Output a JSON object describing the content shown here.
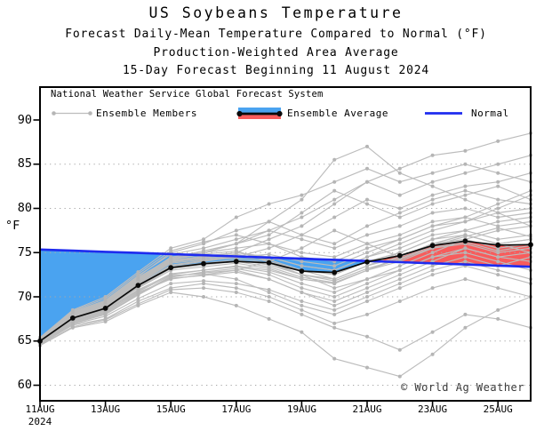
{
  "title": "US Soybeans Temperature",
  "subtitle1": "Forecast Daily-Mean Temperature Compared to Normal (°F)",
  "subtitle2": "Production-Weighted Area Average",
  "subtitle3": "15-Day Forecast Beginning 11 August 2024",
  "watermark": "© World Ag Weather",
  "legend": {
    "header": "National Weather Service Global Forecast System",
    "members_label": "Ensemble Members",
    "average_label": "Ensemble Average",
    "normal_label": "Normal"
  },
  "axes": {
    "y_label": "°F",
    "y_ticks": [
      60,
      65,
      70,
      75,
      80,
      85,
      90
    ],
    "grid_values": [
      60,
      65,
      70,
      75,
      80,
      85
    ],
    "x_ticks": [
      {
        "label": "11AUG",
        "day": 0
      },
      {
        "label": "13AUG",
        "day": 2
      },
      {
        "label": "15AUG",
        "day": 4
      },
      {
        "label": "17AUG",
        "day": 6
      },
      {
        "label": "19AUG",
        "day": 8
      },
      {
        "label": "21AUG",
        "day": 10
      },
      {
        "label": "23AUG",
        "day": 12
      },
      {
        "label": "25AUG",
        "day": 14
      }
    ],
    "x_year": "2024",
    "ylim": [
      58.2,
      93.7
    ]
  },
  "chart_data": {
    "type": "line",
    "title": "US Soybeans Temperature",
    "ylabel": "°F",
    "grid": "dotted horizontal at 5°F steps",
    "legend_position": "top-left-inside",
    "x_dates": [
      "11AUG",
      "12AUG",
      "13AUG",
      "14AUG",
      "15AUG",
      "16AUG",
      "17AUG",
      "18AUG",
      "19AUG",
      "20AUG",
      "21AUG",
      "22AUG",
      "23AUG",
      "24AUG",
      "25AUG",
      "26AUG"
    ],
    "year": "2024",
    "ensemble_average": [
      65.0,
      67.6,
      68.7,
      71.3,
      73.3,
      73.75,
      74.0,
      73.85,
      72.9,
      72.75,
      73.95,
      74.65,
      75.8,
      76.3,
      75.85,
      75.9
    ],
    "normal": [
      75.35,
      75.22,
      75.09,
      74.96,
      74.83,
      74.7,
      74.57,
      74.44,
      74.31,
      74.18,
      74.05,
      73.92,
      73.79,
      73.66,
      73.53,
      73.4
    ],
    "ensemble_members": [
      [
        65.2,
        68.0,
        69.3,
        72.0,
        74.5,
        75.0,
        75.5,
        76.0,
        75.0,
        74.5,
        76.0,
        77.0,
        78.5,
        79.0,
        78.0,
        78.5
      ],
      [
        64.8,
        67.2,
        68.2,
        70.5,
        72.0,
        72.5,
        73.0,
        72.0,
        70.5,
        69.5,
        71.0,
        72.5,
        74.0,
        75.5,
        74.5,
        74.0
      ],
      [
        65.0,
        67.8,
        69.0,
        71.5,
        73.8,
        74.2,
        74.5,
        74.8,
        74.0,
        73.5,
        75.0,
        76.5,
        78.0,
        78.5,
        79.5,
        80.0
      ],
      [
        65.3,
        68.2,
        69.5,
        72.3,
        75.0,
        76.0,
        77.5,
        78.5,
        77.0,
        76.0,
        78.0,
        79.5,
        81.0,
        82.0,
        81.0,
        80.5
      ],
      [
        64.6,
        66.8,
        67.5,
        69.5,
        71.0,
        71.5,
        71.0,
        70.0,
        68.5,
        67.0,
        68.0,
        69.5,
        71.0,
        72.0,
        71.0,
        70.0
      ],
      [
        65.1,
        67.9,
        69.1,
        71.8,
        74.0,
        74.5,
        75.0,
        74.5,
        73.5,
        73.0,
        74.5,
        75.5,
        77.0,
        77.5,
        76.5,
        77.0
      ],
      [
        64.9,
        67.4,
        68.5,
        70.8,
        72.5,
        73.0,
        73.5,
        73.0,
        72.0,
        71.5,
        73.0,
        74.0,
        75.5,
        76.0,
        75.0,
        75.5
      ],
      [
        65.4,
        68.5,
        70.0,
        72.8,
        75.5,
        76.5,
        79.0,
        80.5,
        81.5,
        83.0,
        84.5,
        83.0,
        84.0,
        85.0,
        84.0,
        83.0
      ],
      [
        64.5,
        66.5,
        67.2,
        69.0,
        70.5,
        70.0,
        69.0,
        67.5,
        66.0,
        63.0,
        62.0,
        61.0,
        63.5,
        66.5,
        68.5,
        70.0
      ],
      [
        65.0,
        67.6,
        68.8,
        71.2,
        73.5,
        74.0,
        74.5,
        75.5,
        77.0,
        79.0,
        81.0,
        80.0,
        81.5,
        82.5,
        83.0,
        84.0
      ],
      [
        65.2,
        68.1,
        69.4,
        72.1,
        74.2,
        74.8,
        75.2,
        74.0,
        72.5,
        71.0,
        72.0,
        73.5,
        75.0,
        76.5,
        77.5,
        78.0
      ],
      [
        64.7,
        67.0,
        68.0,
        70.2,
        72.2,
        72.8,
        73.2,
        72.5,
        71.0,
        70.0,
        71.5,
        73.0,
        74.5,
        75.0,
        74.0,
        73.0
      ],
      [
        65.1,
        68.0,
        69.2,
        71.9,
        74.1,
        74.6,
        75.0,
        76.5,
        78.0,
        80.5,
        83.0,
        81.5,
        83.0,
        84.0,
        85.0,
        86.0
      ],
      [
        64.8,
        67.3,
        68.4,
        70.6,
        72.4,
        72.6,
        72.0,
        70.5,
        69.0,
        68.0,
        69.5,
        71.0,
        72.5,
        73.5,
        72.5,
        71.5
      ],
      [
        65.0,
        67.7,
        69.0,
        71.6,
        73.9,
        74.4,
        74.8,
        74.2,
        73.0,
        72.5,
        74.0,
        75.0,
        76.5,
        77.0,
        76.0,
        76.5
      ],
      [
        65.3,
        68.3,
        69.6,
        72.4,
        74.8,
        75.5,
        76.5,
        77.5,
        76.5,
        75.5,
        77.0,
        78.0,
        79.5,
        80.0,
        79.0,
        79.5
      ],
      [
        64.6,
        66.9,
        67.8,
        69.8,
        71.5,
        71.8,
        71.5,
        70.8,
        69.5,
        68.5,
        70.0,
        71.5,
        73.0,
        74.0,
        73.0,
        72.0
      ],
      [
        65.0,
        67.5,
        68.6,
        71.0,
        73.0,
        73.4,
        73.8,
        73.2,
        72.0,
        71.5,
        73.0,
        74.5,
        76.0,
        76.5,
        75.5,
        76.0
      ],
      [
        65.2,
        68.2,
        69.5,
        72.2,
        74.4,
        75.2,
        76.0,
        77.0,
        79.5,
        82.0,
        80.5,
        79.0,
        80.5,
        81.5,
        82.5,
        81.0
      ],
      [
        64.9,
        67.2,
        68.3,
        70.4,
        72.1,
        72.4,
        72.8,
        72.0,
        70.5,
        69.0,
        70.5,
        72.0,
        73.5,
        74.5,
        73.5,
        74.5
      ],
      [
        65.1,
        67.8,
        69.0,
        71.7,
        74.0,
        74.3,
        74.6,
        74.0,
        73.0,
        72.0,
        73.5,
        75.0,
        76.5,
        77.5,
        78.5,
        79.0
      ],
      [
        64.7,
        67.1,
        68.1,
        70.3,
        72.3,
        72.7,
        73.0,
        74.0,
        75.5,
        77.5,
        76.0,
        74.5,
        76.0,
        77.0,
        76.0,
        75.0
      ],
      [
        65.0,
        67.6,
        68.9,
        71.4,
        73.6,
        74.1,
        74.4,
        73.8,
        72.5,
        72.0,
        73.5,
        74.5,
        76.0,
        77.0,
        76.0,
        76.5
      ],
      [
        65.2,
        68.0,
        69.3,
        72.0,
        74.3,
        75.0,
        76.0,
        78.5,
        81.0,
        85.5,
        87.0,
        84.0,
        82.5,
        81.0,
        79.5,
        78.0
      ],
      [
        64.8,
        67.4,
        68.5,
        70.7,
        72.6,
        73.0,
        73.4,
        72.8,
        71.5,
        70.5,
        72.0,
        73.0,
        74.5,
        75.5,
        74.5,
        75.0
      ],
      [
        65.0,
        67.7,
        68.8,
        71.3,
        73.4,
        73.8,
        74.2,
        73.6,
        72.5,
        71.8,
        73.2,
        74.2,
        75.6,
        76.2,
        75.2,
        75.8
      ],
      [
        64.5,
        66.6,
        67.4,
        69.2,
        70.8,
        71.0,
        70.5,
        69.5,
        68.0,
        66.5,
        65.5,
        64.0,
        66.0,
        68.0,
        67.5,
        66.5
      ],
      [
        65.3,
        68.4,
        69.8,
        72.6,
        75.2,
        76.2,
        77.0,
        76.0,
        74.5,
        74.0,
        75.5,
        76.5,
        78.0,
        79.0,
        80.5,
        82.0
      ],
      [
        65.1,
        67.9,
        69.1,
        71.8,
        74.1,
        74.5,
        75.0,
        74.5,
        73.5,
        73.0,
        74.5,
        76.0,
        77.5,
        78.5,
        80.0,
        81.5
      ],
      [
        64.9,
        67.5,
        68.7,
        71.1,
        73.2,
        73.6,
        74.0,
        73.4,
        72.2,
        71.6,
        73.0,
        74.3,
        75.8,
        76.8,
        77.8,
        76.8
      ],
      [
        65.0,
        67.8,
        69.2,
        71.9,
        74.2,
        75.0,
        76.0,
        77.5,
        79.0,
        81.0,
        83.0,
        84.5,
        86.0,
        86.5,
        87.6,
        88.5
      ]
    ],
    "colors": {
      "below_normal_fill": "#4AA3F0",
      "above_normal_fill": "#F85C5C",
      "normal_line": "#1E2BEF",
      "average_line": "#0A0A0A",
      "member_line": "#BCBCBC",
      "member_dot": "#B5B5B5",
      "gridline": "#A8A8A8",
      "frame": "#000000"
    }
  }
}
